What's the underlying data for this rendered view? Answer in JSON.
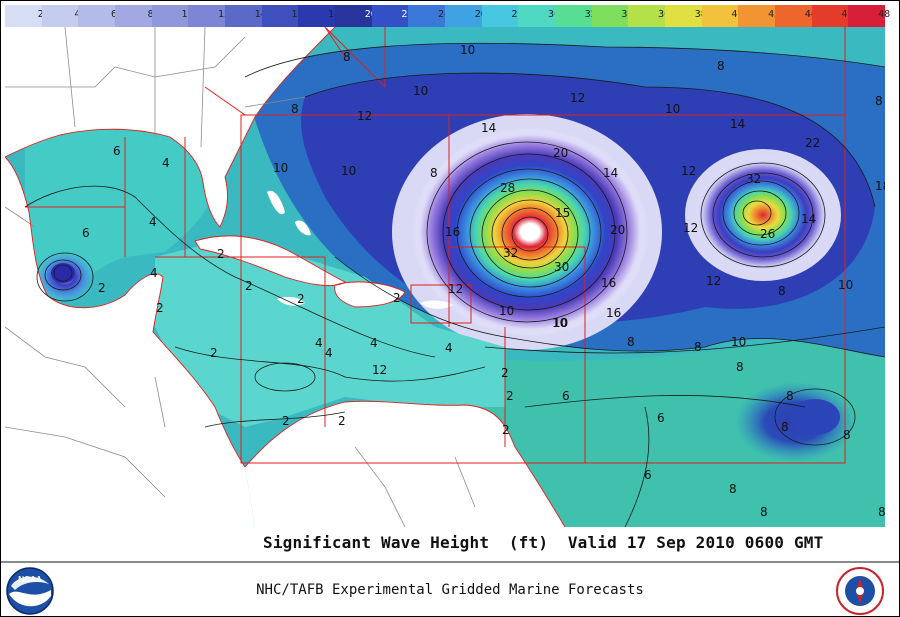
{
  "colorbar": {
    "labels": [
      "2",
      "4",
      "6",
      "8",
      "10",
      "12",
      "14",
      "16",
      "18",
      "20",
      "22",
      "24",
      "26",
      "28",
      "30",
      "32",
      "34",
      "36",
      "38",
      "40",
      "42",
      "44",
      "46",
      "48"
    ],
    "colors": [
      "#d8ddf6",
      "#c5ccf0",
      "#b3bbe9",
      "#a2a9e2",
      "#8f98db",
      "#7c86d4",
      "#5b6ac9",
      "#3f4fbd",
      "#2a39ae",
      "#28349c",
      "#3450c6",
      "#3a78da",
      "#3fa2e2",
      "#48c8e0",
      "#4fd9c2",
      "#58dd95",
      "#7fde5b",
      "#b4e04a",
      "#e0e043",
      "#f2c23c",
      "#f29434",
      "#ee662c",
      "#e53b2b",
      "#d81f3a"
    ]
  },
  "caption": "Significant Wave Height  (ft)  Valid 17 Sep 2010 0600 GMT",
  "footer": "NHC/TAFB Experimental Gridded Marine Forecasts",
  "logos": {
    "left": "NOAA",
    "right": "NATIONAL WEATHER SERVICE"
  },
  "contour_labels": [
    "8",
    "10",
    "8",
    "10",
    "12",
    "10",
    "8",
    "8",
    "12",
    "14",
    "14",
    "22",
    "20",
    "14",
    "8",
    "10",
    "6",
    "4",
    "10",
    "12",
    "32",
    "14",
    "18",
    "10",
    "28",
    "15",
    "20",
    "16",
    "12",
    "26",
    "4",
    "4",
    "16",
    "32",
    "30",
    "16",
    "2",
    "6",
    "2",
    "2",
    "2",
    "12",
    "10",
    "12",
    "8",
    "2",
    "2",
    "2",
    "12",
    "10",
    "10",
    "8",
    "8",
    "2",
    "4",
    "4",
    "4",
    "10",
    "8",
    "2",
    "6",
    "8",
    "4",
    "2",
    "2",
    "6",
    "8",
    "8",
    "2",
    "8",
    "6",
    "8",
    "8"
  ]
}
